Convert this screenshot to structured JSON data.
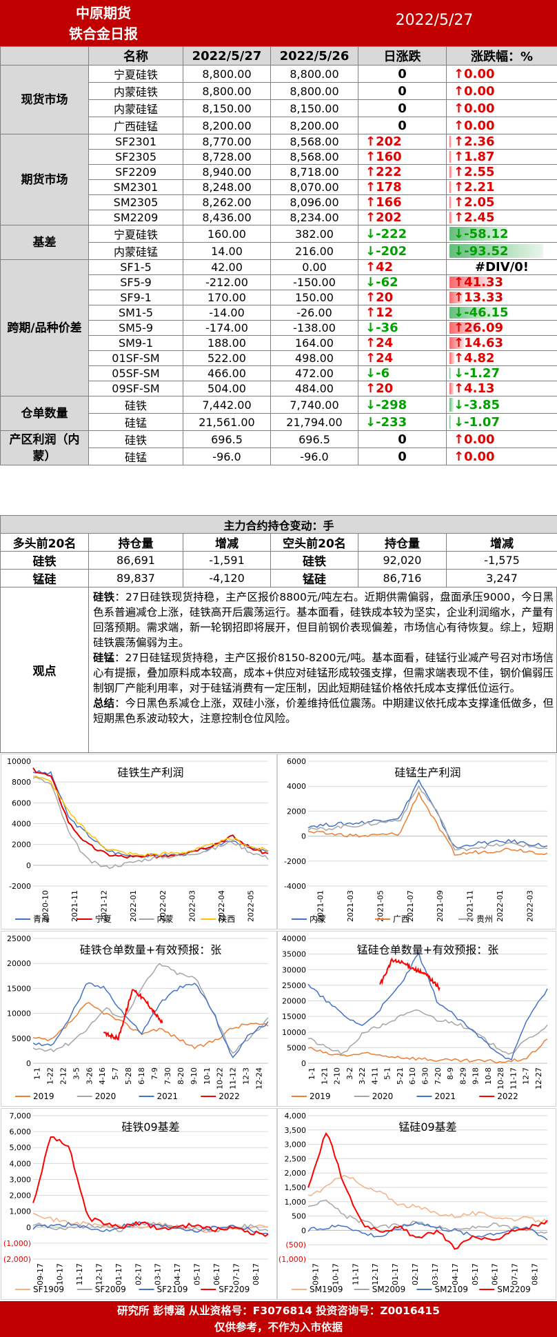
{
  "header": {
    "company": "中原期货",
    "report": "铁合金日报",
    "date": "2022/5/27"
  },
  "table": {
    "headers": [
      "名称",
      "2022/5/27",
      "2022/5/26",
      "日涨跌",
      "涨跌幅：%"
    ],
    "groups": [
      {
        "label": "现货市场",
        "rows": [
          {
            "name": "宁夏硅铁",
            "v1": "8,800.00",
            "v2": "8,800.00",
            "chg": "0",
            "pct": "0.00",
            "dc": "",
            "dp": "up",
            "bar": 0
          },
          {
            "name": "内蒙硅铁",
            "v1": "8,800.00",
            "v2": "8,800.00",
            "chg": "0",
            "pct": "0.00",
            "dc": "",
            "dp": "up",
            "bar": 0
          },
          {
            "name": "内蒙硅锰",
            "v1": "8,150.00",
            "v2": "8,150.00",
            "chg": "0",
            "pct": "0.00",
            "dc": "",
            "dp": "up",
            "bar": 0
          },
          {
            "name": "广西硅锰",
            "v1": "8,200.00",
            "v2": "8,200.00",
            "chg": "0",
            "pct": "0.00",
            "dc": "",
            "dp": "up",
            "bar": 0
          }
        ]
      },
      {
        "label": "期货市场",
        "rows": [
          {
            "name": "SF2301",
            "v1": "8,770.00",
            "v2": "8,568.00",
            "chg": "202",
            "pct": "2.36",
            "dc": "up",
            "dp": "up",
            "bar": 2.36
          },
          {
            "name": "SF2305",
            "v1": "8,728.00",
            "v2": "8,568.00",
            "chg": "160",
            "pct": "1.87",
            "dc": "up",
            "dp": "up",
            "bar": 1.87
          },
          {
            "name": "SF2209",
            "v1": "8,940.00",
            "v2": "8,718.00",
            "chg": "222",
            "pct": "2.55",
            "dc": "up",
            "dp": "up",
            "bar": 2.55
          },
          {
            "name": "SM2301",
            "v1": "8,248.00",
            "v2": "8,070.00",
            "chg": "178",
            "pct": "2.21",
            "dc": "up",
            "dp": "up",
            "bar": 2.21
          },
          {
            "name": "SM2305",
            "v1": "8,262.00",
            "v2": "8,096.00",
            "chg": "166",
            "pct": "2.05",
            "dc": "up",
            "dp": "up",
            "bar": 2.05
          },
          {
            "name": "SM2209",
            "v1": "8,436.00",
            "v2": "8,234.00",
            "chg": "202",
            "pct": "2.45",
            "dc": "up",
            "dp": "up",
            "bar": 2.45
          }
        ]
      },
      {
        "label": "基差",
        "rows": [
          {
            "name": "宁夏硅铁",
            "v1": "160.00",
            "v2": "382.00",
            "chg": "-222",
            "pct": "-58.12",
            "dc": "down",
            "dp": "down",
            "bar": -58.12
          },
          {
            "name": "内蒙硅锰",
            "v1": "14.00",
            "v2": "216.00",
            "chg": "-202",
            "pct": "-93.52",
            "dc": "down",
            "dp": "down",
            "bar": -93.52
          }
        ]
      },
      {
        "label": "跨期/品种价差",
        "rows": [
          {
            "name": "SF1-5",
            "v1": "42.00",
            "v2": "0.00",
            "chg": "42",
            "pct": "#DIV/0!",
            "dc": "up",
            "dp": "",
            "bar": 0
          },
          {
            "name": "SF5-9",
            "v1": "-212.00",
            "v2": "-150.00",
            "chg": "-62",
            "pct": "41.33",
            "dc": "down",
            "dp": "up",
            "bar": 41.33
          },
          {
            "name": "SF9-1",
            "v1": "170.00",
            "v2": "150.00",
            "chg": "20",
            "pct": "13.33",
            "dc": "up",
            "dp": "up",
            "bar": 13.33
          },
          {
            "name": "SM1-5",
            "v1": "-14.00",
            "v2": "-26.00",
            "chg": "12",
            "pct": "-46.15",
            "dc": "up",
            "dp": "down",
            "bar": -46.15
          },
          {
            "name": "SM5-9",
            "v1": "-174.00",
            "v2": "-138.00",
            "chg": "-36",
            "pct": "26.09",
            "dc": "down",
            "dp": "up",
            "bar": 26.09
          },
          {
            "name": "SM9-1",
            "v1": "188.00",
            "v2": "164.00",
            "chg": "24",
            "pct": "14.63",
            "dc": "up",
            "dp": "up",
            "bar": 14.63
          },
          {
            "name": "01SF-SM",
            "v1": "522.00",
            "v2": "498.00",
            "chg": "24",
            "pct": "4.82",
            "dc": "up",
            "dp": "up",
            "bar": 4.82
          },
          {
            "name": "05SF-SM",
            "v1": "466.00",
            "v2": "472.00",
            "chg": "-6",
            "pct": "-1.27",
            "dc": "down",
            "dp": "down",
            "bar": -1.27
          },
          {
            "name": "09SF-SM",
            "v1": "504.00",
            "v2": "484.00",
            "chg": "20",
            "pct": "4.13",
            "dc": "up",
            "dp": "up",
            "bar": 4.13
          }
        ]
      },
      {
        "label": "仓单数量",
        "rows": [
          {
            "name": "硅铁",
            "v1": "7,442.00",
            "v2": "7,740.00",
            "chg": "-298",
            "pct": "-3.85",
            "dc": "down",
            "dp": "down",
            "bar": -3.85
          },
          {
            "name": "硅锰",
            "v1": "21,561.00",
            "v2": "21,794.00",
            "chg": "-233",
            "pct": "-1.07",
            "dc": "down",
            "dp": "down",
            "bar": -1.07
          }
        ]
      },
      {
        "label": "产区利润（内蒙）",
        "rows": [
          {
            "name": "硅铁",
            "v1": "696.5",
            "v2": "696.5",
            "chg": "0",
            "pct": "0.00",
            "dc": "",
            "dp": "up",
            "bar": 0
          },
          {
            "name": "硅锰",
            "v1": "-96.0",
            "v2": "-96.0",
            "chg": "0",
            "pct": "0.00",
            "dc": "",
            "dp": "up",
            "bar": 0
          }
        ]
      }
    ]
  },
  "positions": {
    "title": "主力合约持仓变动：手",
    "headers": [
      "多头前20名",
      "持仓量",
      "增减",
      "空头前20名",
      "持仓量",
      "增减"
    ],
    "rows": [
      {
        "l": "硅铁",
        "lv": "86,691",
        "lc": "-1,591",
        "s": "硅铁",
        "sv": "92,020",
        "sc": "-1,575"
      },
      {
        "l": "锰硅",
        "lv": "89,837",
        "lc": "-4,120",
        "s": "锰硅",
        "sv": "86,716",
        "sc": "3,247"
      }
    ]
  },
  "view": {
    "label": "观点",
    "p1_head": "硅铁",
    "p1": "：27日硅铁现货持稳，主产区报价8800元/吨左右。近期供需偏弱，盘面承压9000，今日黑色系普遍减仓上涨，硅铁高开后震荡运行。基本面看，硅铁成本较为坚实，企业利润缩水，产量有回落预期。需求端，新一轮钢招即将展开，但目前钢价表现偏差，市场信心有待恢复。综上，短期硅铁震荡偏弱为主。",
    "p2_head": "硅锰",
    "p2": "：27日硅锰现货持稳，主产区报价8150-8200元/吨。基本面看，硅锰行业减产号召对市场信心有提振，叠加原料成本较高，成本+供应对硅锰形成较强支撑，但需求端表现不佳，钢价偏弱压制钢厂产能利用率，对于硅锰消费有一定压制，因此短期硅锰价格依托成本支撑低位运行。",
    "p3_head": "总结",
    "p3": "：今日黑色系减仓上涨，双硅小涨，价差维持低位震荡。中期建议依托成本支撑逢低做多，但短期黑色系波动较大，注意控制仓位风险。"
  },
  "charts": [
    {
      "title": "硅铁生产利润",
      "ylim": [
        -2000,
        10000
      ],
      "yticks": [
        "10000",
        "8000",
        "6000",
        "4000",
        "2000",
        "0",
        "-2000"
      ],
      "xticks": [
        "2020-10",
        "2021-11",
        "2021-12",
        "2022-01",
        "2022-02",
        "2022-03",
        "2022-04",
        "2022-05"
      ],
      "legend": [
        "青海",
        "宁夏",
        "内蒙",
        "陕西"
      ],
      "colors": [
        "#4472c4",
        "#e00000",
        "#a5a5a5",
        "#ffc000"
      ]
    },
    {
      "title": "硅锰生产利润",
      "ylim": [
        -4000,
        6000
      ],
      "yticks": [
        "6000",
        "4000",
        "2000",
        "0",
        "-2000",
        "-4000"
      ],
      "xticks": [
        "2021-01",
        "2021-03",
        "2021-05",
        "2021-07",
        "2021-09",
        "2021-11",
        "2022-01",
        "2022-03"
      ],
      "legend": [
        "内蒙",
        "广西",
        "贵州"
      ],
      "colors": [
        "#4472c4",
        "#ed7d31",
        "#a5a5a5"
      ]
    },
    {
      "title": "硅铁仓单数量+有效预报：张",
      "ylim": [
        0,
        25000
      ],
      "yticks": [
        "25000",
        "20000",
        "15000",
        "10000",
        "5000",
        "0"
      ],
      "xticks": [
        "1-1",
        "1-22",
        "2-12",
        "3-5",
        "3-26",
        "4-16",
        "5-7",
        "5-28",
        "6-18",
        "7-9",
        "7-30",
        "8-20",
        "9-10",
        "10-1",
        "10-22",
        "11-12",
        "12-3",
        "12-24"
      ],
      "legend": [
        "2019",
        "2020",
        "2021",
        "2022"
      ],
      "colors": [
        "#ed7d31",
        "#a5a5a5",
        "#4472c4",
        "#ff0000"
      ]
    },
    {
      "title": "锰硅仓单数量+有效预报：张",
      "ylim": [
        0,
        40000
      ],
      "yticks": [
        "40000",
        "35000",
        "30000",
        "25000",
        "20000",
        "15000",
        "10000",
        "5000",
        "0"
      ],
      "xticks": [
        "1-1",
        "1-21",
        "2-10",
        "3-2",
        "3-22",
        "4-11",
        "5-1",
        "5-21",
        "6-10",
        "6-30",
        "7-20",
        "8-9",
        "8-29",
        "9-18",
        "10-8",
        "10-28",
        "11-17",
        "12-7",
        "12-27"
      ],
      "legend": [
        "2019",
        "2020",
        "2021",
        "2022"
      ],
      "colors": [
        "#ed7d31",
        "#a5a5a5",
        "#4472c4",
        "#ff0000"
      ]
    },
    {
      "title": "硅铁09基差",
      "ylim": [
        -2000,
        7000
      ],
      "yticks": [
        "7,000",
        "6,000",
        "5,000",
        "4,000",
        "3,000",
        "2,000",
        "1,000",
        "0",
        "(1,000)",
        "(2,000)"
      ],
      "xticks": [
        "09-17",
        "10-17",
        "11-17",
        "12-17",
        "01-17",
        "02-17",
        "03-17",
        "04-17",
        "05-17",
        "06-17",
        "07-17",
        "08-17"
      ],
      "legend": [
        "SF1909",
        "SF2009",
        "SF2109",
        "SF2209"
      ],
      "colors": [
        "#f4b183",
        "#a5a5a5",
        "#4472c4",
        "#ff0000"
      ]
    },
    {
      "title": "锰硅09基差",
      "ylim": [
        -1000,
        4000
      ],
      "yticks": [
        "4,000",
        "3,500",
        "3,000",
        "2,500",
        "2,000",
        "1,500",
        "1,000",
        "500",
        "0",
        "(500)",
        "(1,000)"
      ],
      "xticks": [
        "09-17",
        "10-17",
        "11-17",
        "12-17",
        "01-17",
        "02-17",
        "03-17",
        "04-17",
        "05-17",
        "06-17",
        "07-17",
        "08-17"
      ],
      "legend": [
        "SM1909",
        "SM2009",
        "SM2109",
        "SM2209"
      ],
      "colors": [
        "#f4b183",
        "#a5a5a5",
        "#4472c4",
        "#ff0000"
      ]
    }
  ],
  "footer": {
    "line1": "研究所 彭博涵 从业资格号：F3076814 投资咨询号：Z0016415",
    "line2": "仅供参考，不作为入市依据"
  }
}
